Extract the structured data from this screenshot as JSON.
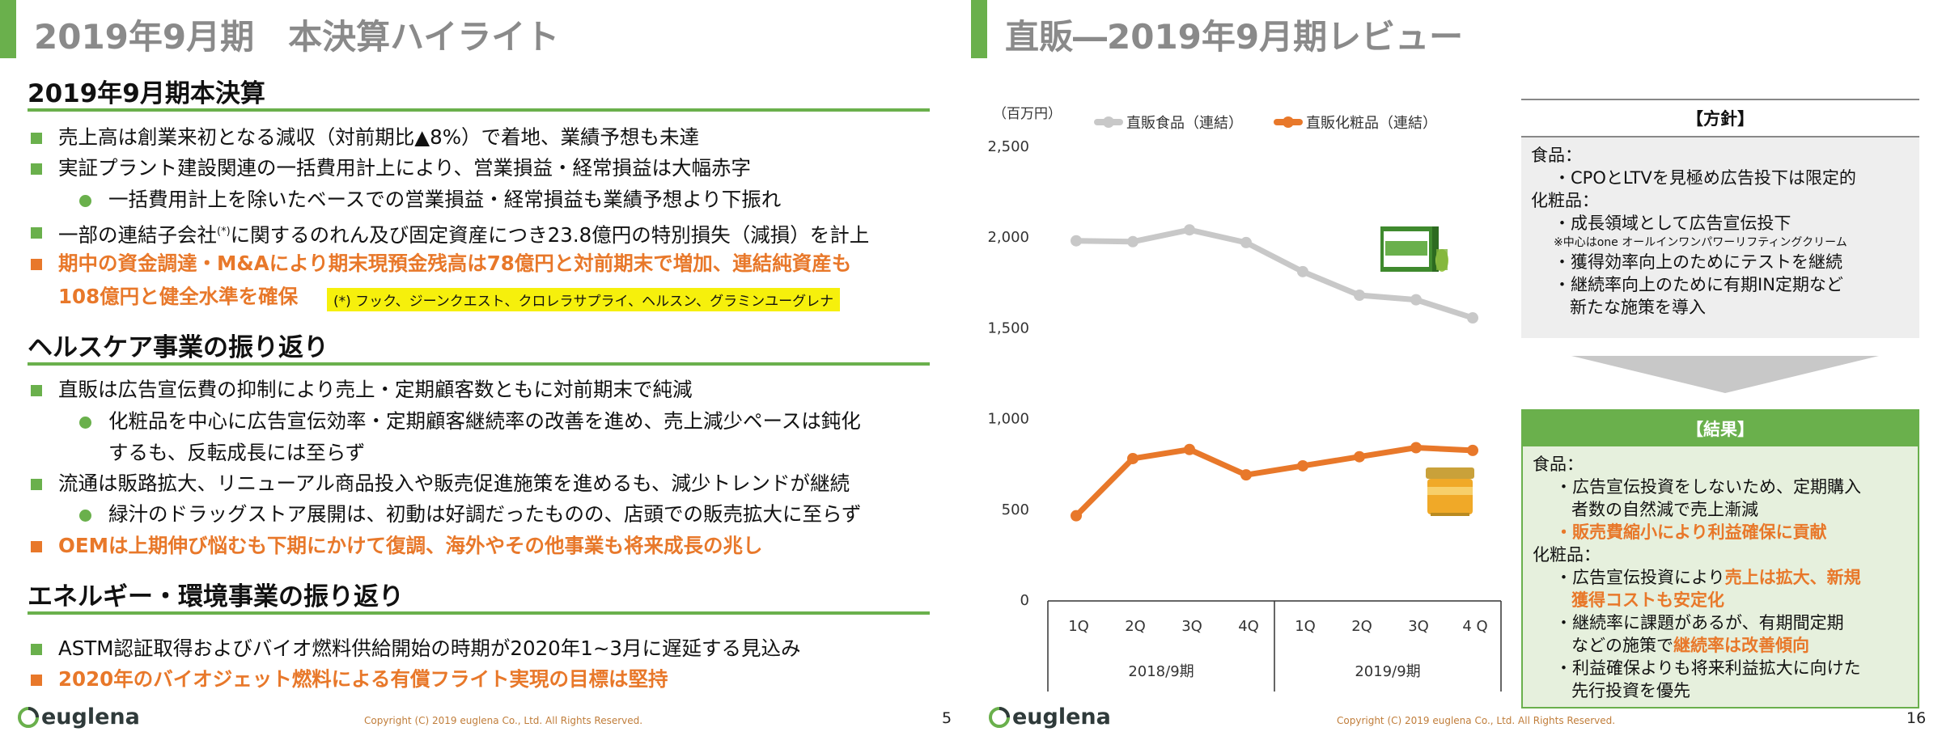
{
  "left": {
    "title": "2019年9月期　本決算ハイライト",
    "sec1": {
      "heading": "2019年9月期本決算",
      "b1": "売上高は創業来初となる減収（対前期比▲8%）で着地、業績予想も未達",
      "b2": "実証プラント建設関連の一括費用計上により、営業損益・経常損益は大幅赤字",
      "b2_sub": "一括費用計上を除いたベースでの営業損益・経常損益も業績予想より下振れ",
      "b3_pre": "一部の連結子会社",
      "b3_mark": "(*)",
      "b3_post": "に関するのれん及び固定資産につき23.8億円の特別損失（減損）を計上",
      "b4_line1": "期中の資金調達・M&Aにより期末現預金残高は78億円と対前期末で増加、連結純資産も",
      "b4_line2": "108億円と健全水準を確保",
      "footnote": "(*) フック、ジーンクエスト、クロレラサプライ、ヘルスン、グラミンユーグレナ"
    },
    "sec2": {
      "heading": "ヘルスケア事業の振り返り",
      "b1": "直販は広告宣伝費の抑制により売上・定期顧客数ともに対前期末で純減",
      "b1_sub_line1": "化粧品を中心に広告宣伝効率・定期顧客継続率の改善を進め、売上減少ペースは鈍化",
      "b1_sub_line2": "するも、反転成長には至らず",
      "b2": "流通は販路拡大、リニューアル商品投入や販売促進施策を進めるも、減少トレンドが継続",
      "b2_sub": "緑汁のドラッグストア展開は、初動は好調だったものの、店頭での販売拡大に至らず",
      "b3": "OEMは上期伸び悩むも下期にかけて復調、海外やその他事業も将来成長の兆し"
    },
    "sec3": {
      "heading": "エネルギー・環境事業の振り返り",
      "b1": "ASTM認証取得およびバイオ燃料供給開始の時期が2020年1~3月に遅延する見込み",
      "b2": "2020年のバイオジェット燃料による有償フライト実現の目標は堅持"
    },
    "footer": {
      "logo": "euglena",
      "copyright": "Copyright (C) 2019 euglena Co., Ltd. All Rights Reserved.",
      "page": "5"
    }
  },
  "right": {
    "title": "直販―2019年9月期レビュー",
    "policy": {
      "header": "【方針】",
      "food_label": "食品：",
      "food1": "・CPOとLTVを見極め広告投下は限定的",
      "cos_label": "化粧品：",
      "cos1": "・成長領域として広告宣伝投下",
      "cos_note": "※中心はone オールインワンパワーリフティングクリーム",
      "cos2": "・獲得効率向上のためにテストを継続",
      "cos3_line1": "・継続率向上のために有期IN定期など",
      "cos3_line2": "新たな施策を導入"
    },
    "result": {
      "header": "【結果】",
      "food_label": "食品：",
      "food1_line1": "・広告宣伝投資をしないため、定期購入",
      "food1_line2": "者数の自然減で売上漸減",
      "food2": "・販売費縮小により利益確保に貢献",
      "cos_label": "化粧品：",
      "cos1_pre": "・広告宣伝投資により",
      "cos1_hl1": "売上は拡大、新規",
      "cos1_hl2": "獲得コストも安定化",
      "cos2_line1": "・継続率に課題があるが、有期間定期",
      "cos2_pre": "などの施策で",
      "cos2_hl": "継続率は改善傾向",
      "cos3_line1": "・利益確保よりも将来利益拡大に向けた",
      "cos3_line2": "先行投資を優先"
    },
    "footer": {
      "logo": "euglena",
      "copyright": "Copyright (C) 2019 euglena Co., Ltd. All Rights Reserved.",
      "page": "16"
    }
  },
  "chart_data": {
    "type": "line",
    "unit_label": "（百万円）",
    "categories": [
      "1Q",
      "2Q",
      "3Q",
      "4Q",
      "1Q",
      "2Q",
      "3Q",
      "4 Q"
    ],
    "groups": [
      {
        "label": "2018/9期"
      },
      {
        "label": "2019/9期"
      }
    ],
    "series": [
      {
        "name": "直販食品（連結）",
        "color": "#c8c8c8",
        "values": [
          1980,
          1975,
          2040,
          1970,
          1810,
          1680,
          1655,
          1555
        ]
      },
      {
        "name": "直販化粧品（連結）",
        "color": "#e8782a",
        "values": [
          465,
          780,
          830,
          690,
          740,
          790,
          840,
          825
        ]
      }
    ],
    "yticks": [
      "2,500",
      "2,000",
      "1,500",
      "1,000",
      "500",
      "0"
    ],
    "ylim": [
      0,
      2500
    ],
    "grid": false
  },
  "colors": {
    "accent_green": "#6ab04c",
    "accent_orange": "#e8782a",
    "title_gray": "#8a8a8a",
    "footnote_yellow": "#f6f00c"
  }
}
